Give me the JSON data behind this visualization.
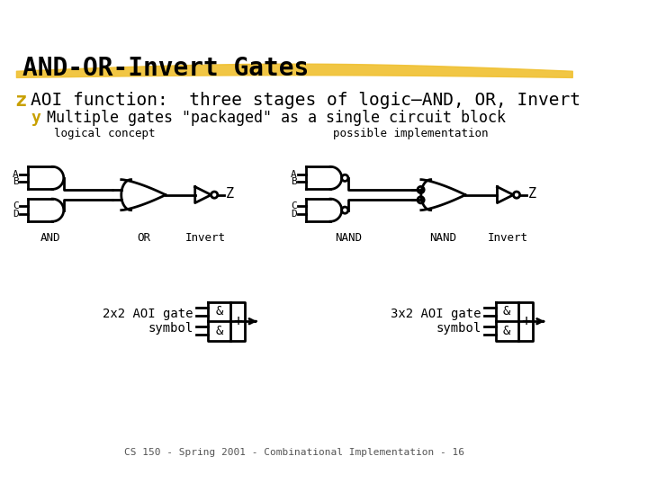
{
  "title": "AND-OR-Invert Gates",
  "label_logical": "logical concept",
  "label_impl": "possible implementation",
  "label_and": "AND",
  "label_or": "OR",
  "label_invert": "Invert",
  "label_nand1": "NAND",
  "label_nand2": "NAND",
  "label_invert2": "Invert",
  "label_2x2": "2x2 AOI gate\nsymbol",
  "label_3x2": "3x2 AOI gate\nsymbol",
  "label_z": "Z",
  "footer": "CS 150 - Spring 2001 - Combinational Implementation - 16",
  "bg_color": "#ffffff",
  "line_color": "#000000",
  "title_color": "#000000",
  "highlight_color": "#f0c030",
  "bullet_star_color": "#c8a000",
  "sub_bullet_star_color": "#c8a000"
}
